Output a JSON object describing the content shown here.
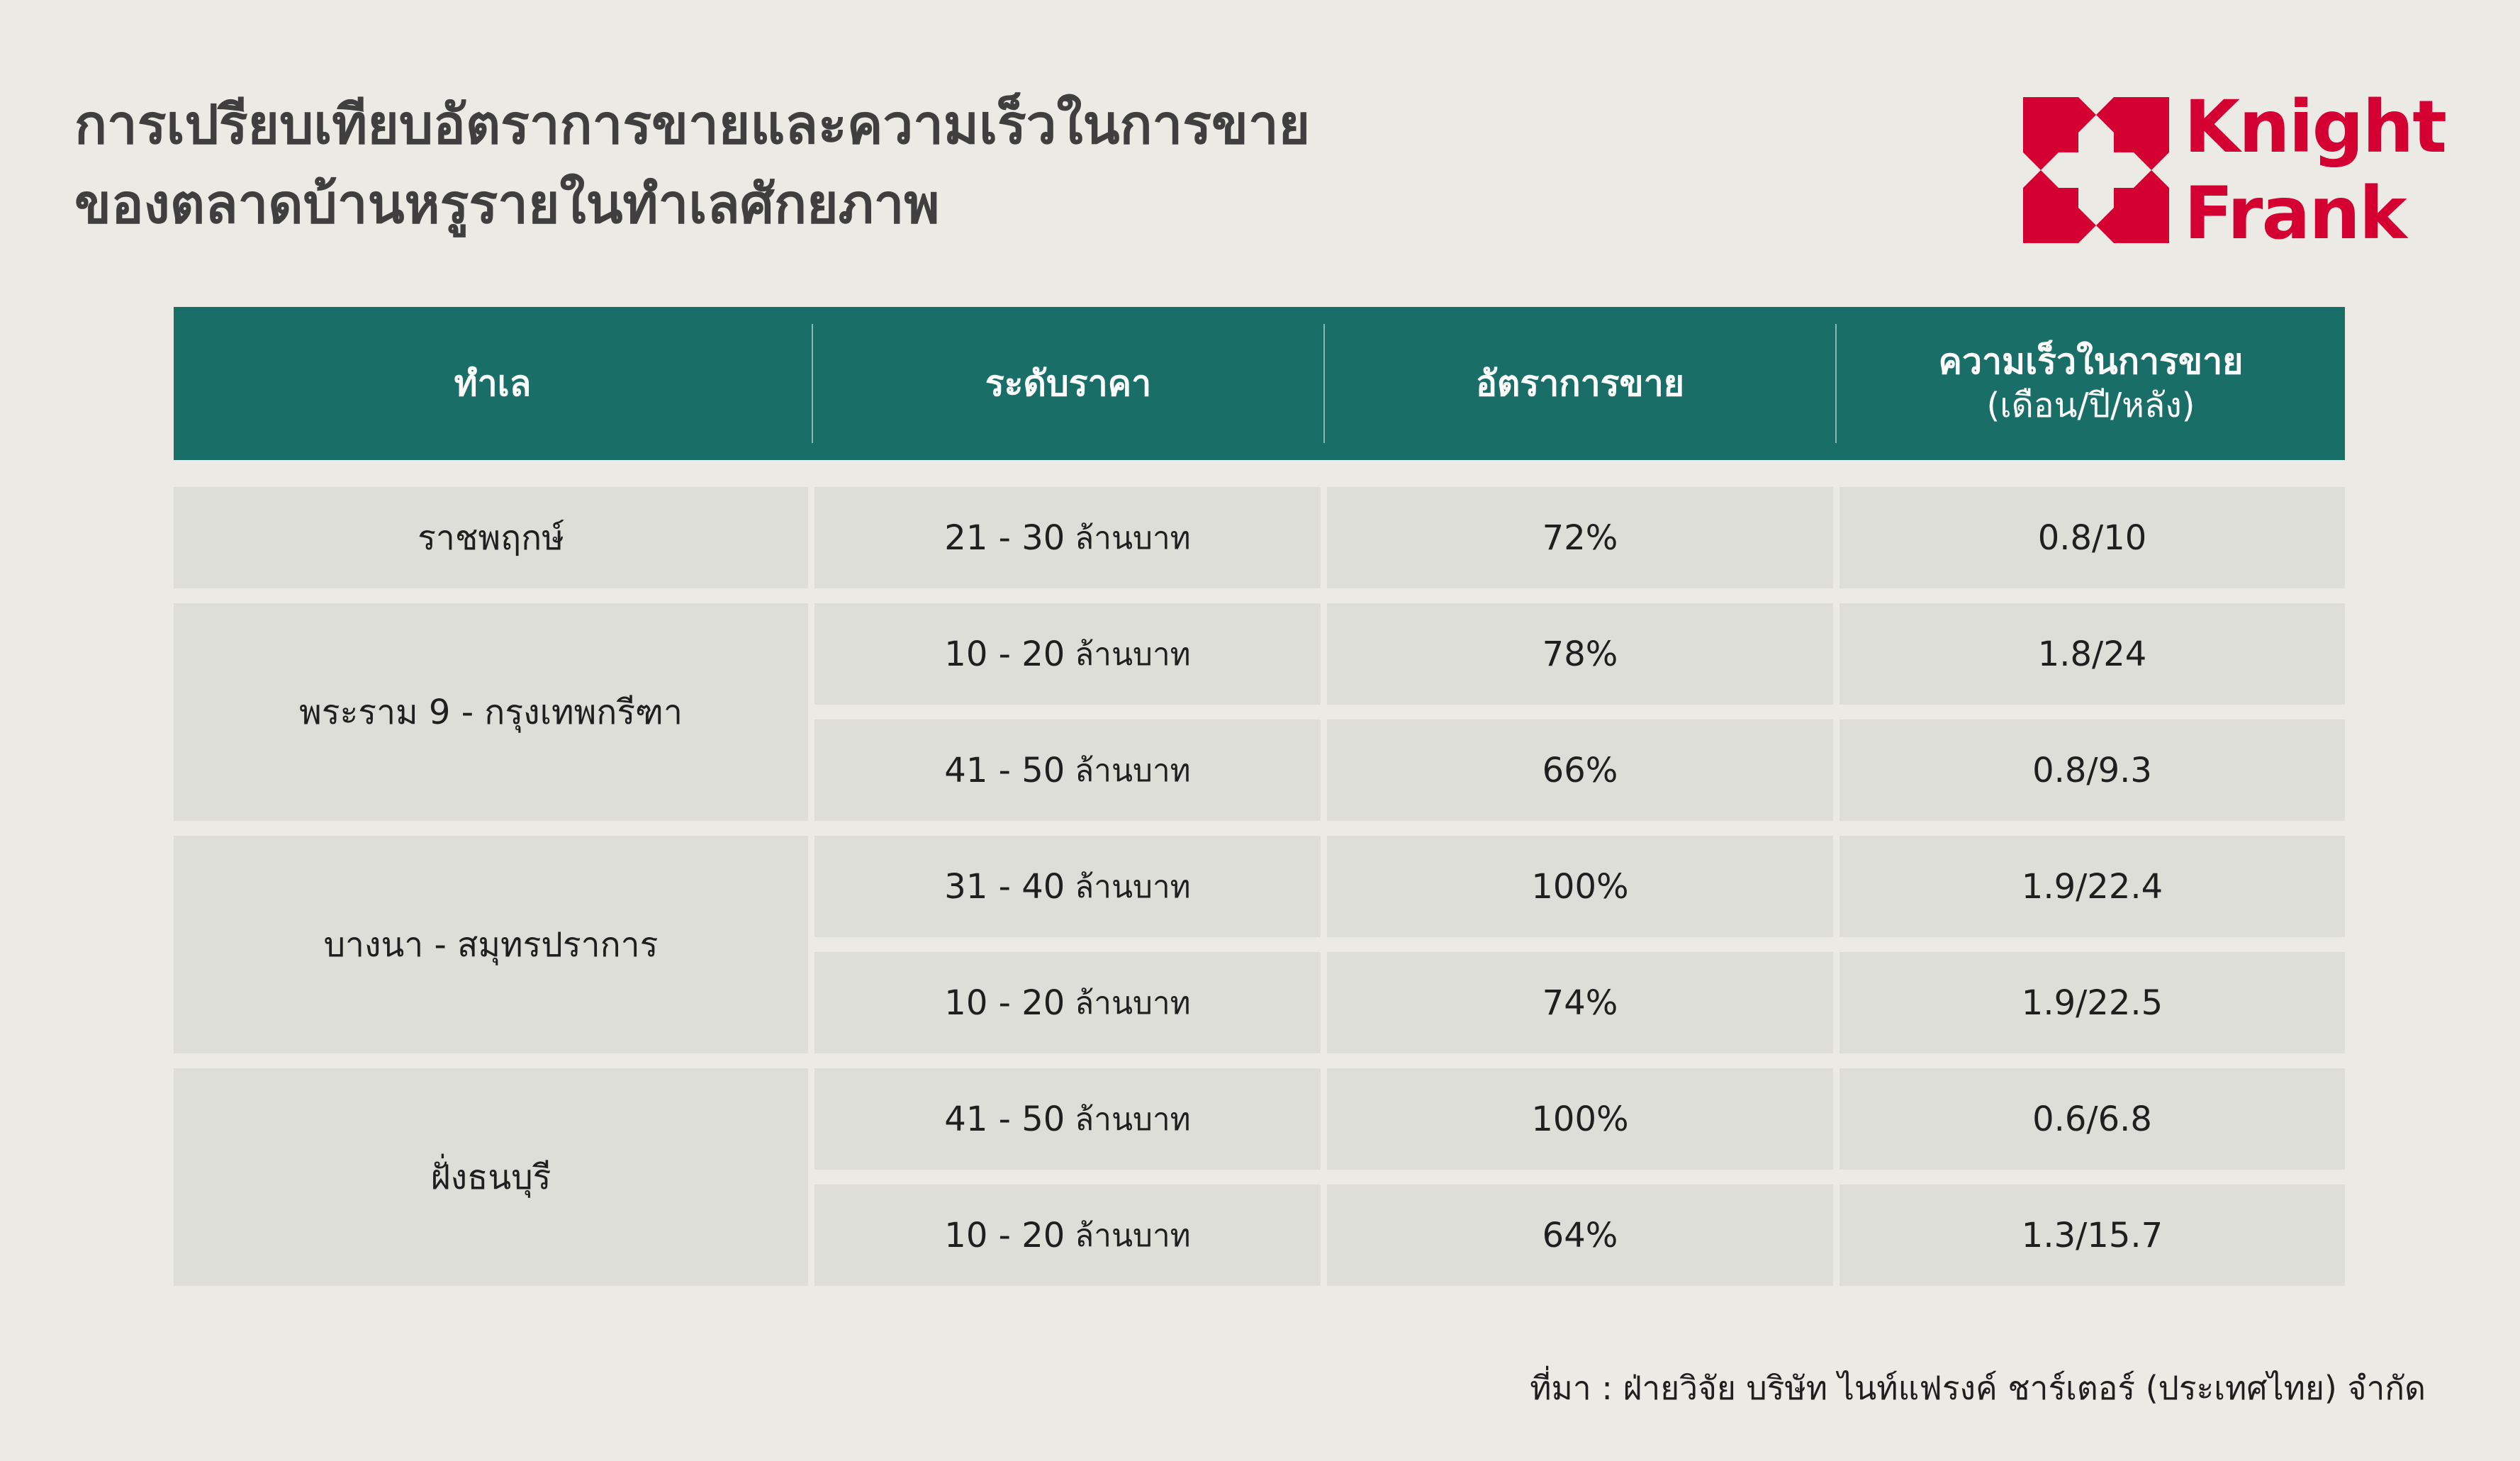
{
  "title": {
    "line1": "การเปรียบเทียบอัตราการขายและความเร็วในการขาย",
    "line2": "ของตลาดบ้านหรูรายในทำเลศักยภาพ"
  },
  "logo": {
    "line1": "Knight",
    "line2": "Frank",
    "brand_color": "#d50032",
    "icon": "knight-frank-mark-icon"
  },
  "table": {
    "header_color": "#1a6e68",
    "cell_color": "#dedeD8",
    "headers": {
      "location": "ทำเล",
      "price": "ระดับราคา",
      "sales_rate": "อัตราการขาย",
      "speed": "ความเร็วในการขาย",
      "speed_unit": "(เดือน/ปี/หลัง)"
    },
    "groups": [
      {
        "location": "ราชพฤกษ์",
        "rows": [
          {
            "price": "21 - 30",
            "unit": "ล้านบาท",
            "rate": "72%",
            "speed": "0.8/10"
          }
        ]
      },
      {
        "location": "พระราม 9 - กรุงเทพกรีฑา",
        "rows": [
          {
            "price": "10 - 20",
            "unit": "ล้านบาท",
            "rate": "78%",
            "speed": "1.8/24"
          },
          {
            "price": "41 - 50",
            "unit": "ล้านบาท",
            "rate": "66%",
            "speed": "0.8/9.3"
          }
        ]
      },
      {
        "location": "บางนา - สมุทรปราการ",
        "rows": [
          {
            "price": "31 - 40",
            "unit": "ล้านบาท",
            "rate": "100%",
            "speed": "1.9/22.4"
          },
          {
            "price": "10 - 20",
            "unit": "ล้านบาท",
            "rate": "74%",
            "speed": "1.9/22.5"
          }
        ]
      },
      {
        "location": "ฝั่งธนบุรี",
        "rows": [
          {
            "price": "41 - 50",
            "unit": "ล้านบาท",
            "rate": "100%",
            "speed": "0.6/6.8"
          },
          {
            "price": "10 - 20",
            "unit": "ล้านบาท",
            "rate": "64%",
            "speed": "1.3/15.7"
          }
        ]
      }
    ]
  },
  "source": "ที่มา : ฝ่ายวิจัย บริษัท ไนท์แฟรงค์ ชาร์เตอร์ (ประเทศไทย) จำกัด"
}
